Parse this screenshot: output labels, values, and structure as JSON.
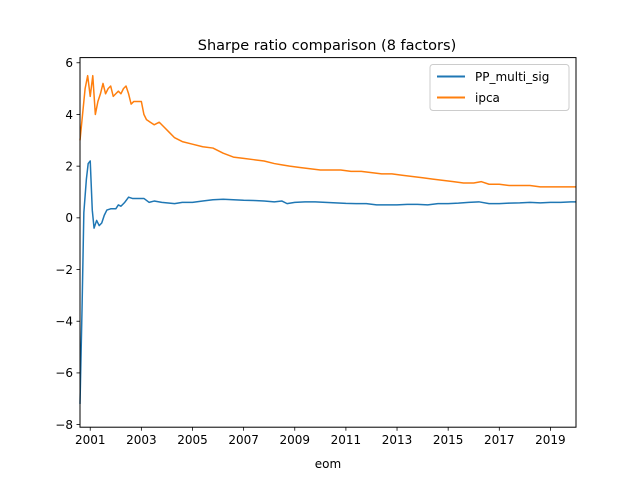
{
  "chart_data": {
    "type": "line",
    "title": "Sharpe ratio comparison (8 factors)",
    "xlabel": "eom",
    "ylabel": "",
    "xlim": [
      2000.6,
      2020.0
    ],
    "ylim": [
      -8.1,
      6.2
    ],
    "x_ticks": [
      2001,
      2003,
      2005,
      2007,
      2009,
      2011,
      2013,
      2015,
      2017,
      2019
    ],
    "x_tick_labels": [
      "2001",
      "2003",
      "2005",
      "2007",
      "2009",
      "2011",
      "2013",
      "2015",
      "2017",
      "2019"
    ],
    "y_ticks": [
      -8,
      -6,
      -4,
      -2,
      0,
      2,
      4,
      6
    ],
    "y_tick_labels": [
      "−8",
      "−6",
      "−4",
      "−2",
      "0",
      "2",
      "4",
      "6"
    ],
    "grid": false,
    "legend_position": "top-right",
    "series": [
      {
        "name": "PP_multi_sig",
        "color": "#1f77b4",
        "x": [
          2000.6,
          2000.68,
          2000.75,
          2000.85,
          2000.92,
          2001.0,
          2001.08,
          2001.15,
          2001.25,
          2001.35,
          2001.45,
          2001.55,
          2001.65,
          2001.8,
          2002.0,
          2002.1,
          2002.2,
          2002.35,
          2002.5,
          2002.65,
          2002.85,
          2003.1,
          2003.3,
          2003.5,
          2003.8,
          2004.0,
          2004.3,
          2004.6,
          2005.0,
          2005.4,
          2005.8,
          2006.2,
          2006.6,
          2007.0,
          2007.4,
          2007.8,
          2008.2,
          2008.5,
          2008.7,
          2009.0,
          2009.4,
          2009.8,
          2010.2,
          2010.6,
          2011.0,
          2011.4,
          2011.8,
          2012.2,
          2012.6,
          2013.0,
          2013.4,
          2013.8,
          2014.2,
          2014.6,
          2015.0,
          2015.4,
          2015.8,
          2016.2,
          2016.6,
          2017.0,
          2017.4,
          2017.8,
          2018.2,
          2018.6,
          2019.0,
          2019.4,
          2019.8,
          2020.0
        ],
        "values": [
          -7.2,
          -3.5,
          0.2,
          1.5,
          2.1,
          2.2,
          0.3,
          -0.4,
          -0.1,
          -0.3,
          -0.2,
          0.1,
          0.3,
          0.35,
          0.35,
          0.5,
          0.45,
          0.6,
          0.8,
          0.75,
          0.75,
          0.75,
          0.6,
          0.65,
          0.6,
          0.58,
          0.55,
          0.6,
          0.6,
          0.65,
          0.7,
          0.72,
          0.7,
          0.68,
          0.67,
          0.65,
          0.62,
          0.65,
          0.55,
          0.6,
          0.62,
          0.62,
          0.6,
          0.58,
          0.56,
          0.55,
          0.55,
          0.5,
          0.5,
          0.5,
          0.52,
          0.52,
          0.5,
          0.55,
          0.55,
          0.57,
          0.6,
          0.62,
          0.55,
          0.55,
          0.57,
          0.58,
          0.6,
          0.58,
          0.6,
          0.6,
          0.62,
          0.62
        ]
      },
      {
        "name": "ipca",
        "color": "#ff7f0e",
        "x": [
          2000.6,
          2000.7,
          2000.8,
          2000.9,
          2001.0,
          2001.1,
          2001.2,
          2001.3,
          2001.4,
          2001.5,
          2001.6,
          2001.7,
          2001.8,
          2001.9,
          2002.0,
          2002.1,
          2002.2,
          2002.3,
          2002.4,
          2002.5,
          2002.6,
          2002.7,
          2002.8,
          2003.0,
          2003.1,
          2003.2,
          2003.35,
          2003.5,
          2003.7,
          2003.9,
          2004.1,
          2004.3,
          2004.6,
          2005.0,
          2005.4,
          2005.8,
          2006.2,
          2006.6,
          2007.0,
          2007.4,
          2007.8,
          2008.2,
          2008.5,
          2008.8,
          2009.2,
          2009.6,
          2010.0,
          2010.4,
          2010.8,
          2011.2,
          2011.6,
          2012.0,
          2012.4,
          2012.8,
          2013.2,
          2013.6,
          2014.0,
          2014.4,
          2014.8,
          2015.2,
          2015.6,
          2016.0,
          2016.3,
          2016.6,
          2017.0,
          2017.4,
          2017.8,
          2018.2,
          2018.6,
          2019.0,
          2019.4,
          2019.8,
          2020.0
        ],
        "values": [
          3.0,
          4.0,
          5.0,
          5.5,
          4.7,
          5.5,
          4.0,
          4.5,
          4.8,
          5.2,
          4.8,
          5.0,
          5.1,
          4.7,
          4.8,
          4.9,
          4.8,
          5.0,
          5.1,
          4.8,
          4.4,
          4.5,
          4.5,
          4.5,
          4.0,
          3.8,
          3.7,
          3.6,
          3.7,
          3.5,
          3.3,
          3.1,
          2.95,
          2.85,
          2.75,
          2.7,
          2.5,
          2.35,
          2.3,
          2.25,
          2.2,
          2.1,
          2.05,
          2.0,
          1.95,
          1.9,
          1.85,
          1.85,
          1.85,
          1.8,
          1.8,
          1.75,
          1.7,
          1.7,
          1.65,
          1.6,
          1.55,
          1.5,
          1.45,
          1.4,
          1.35,
          1.35,
          1.4,
          1.3,
          1.3,
          1.25,
          1.25,
          1.25,
          1.2,
          1.2,
          1.2,
          1.2,
          1.2
        ]
      }
    ]
  }
}
